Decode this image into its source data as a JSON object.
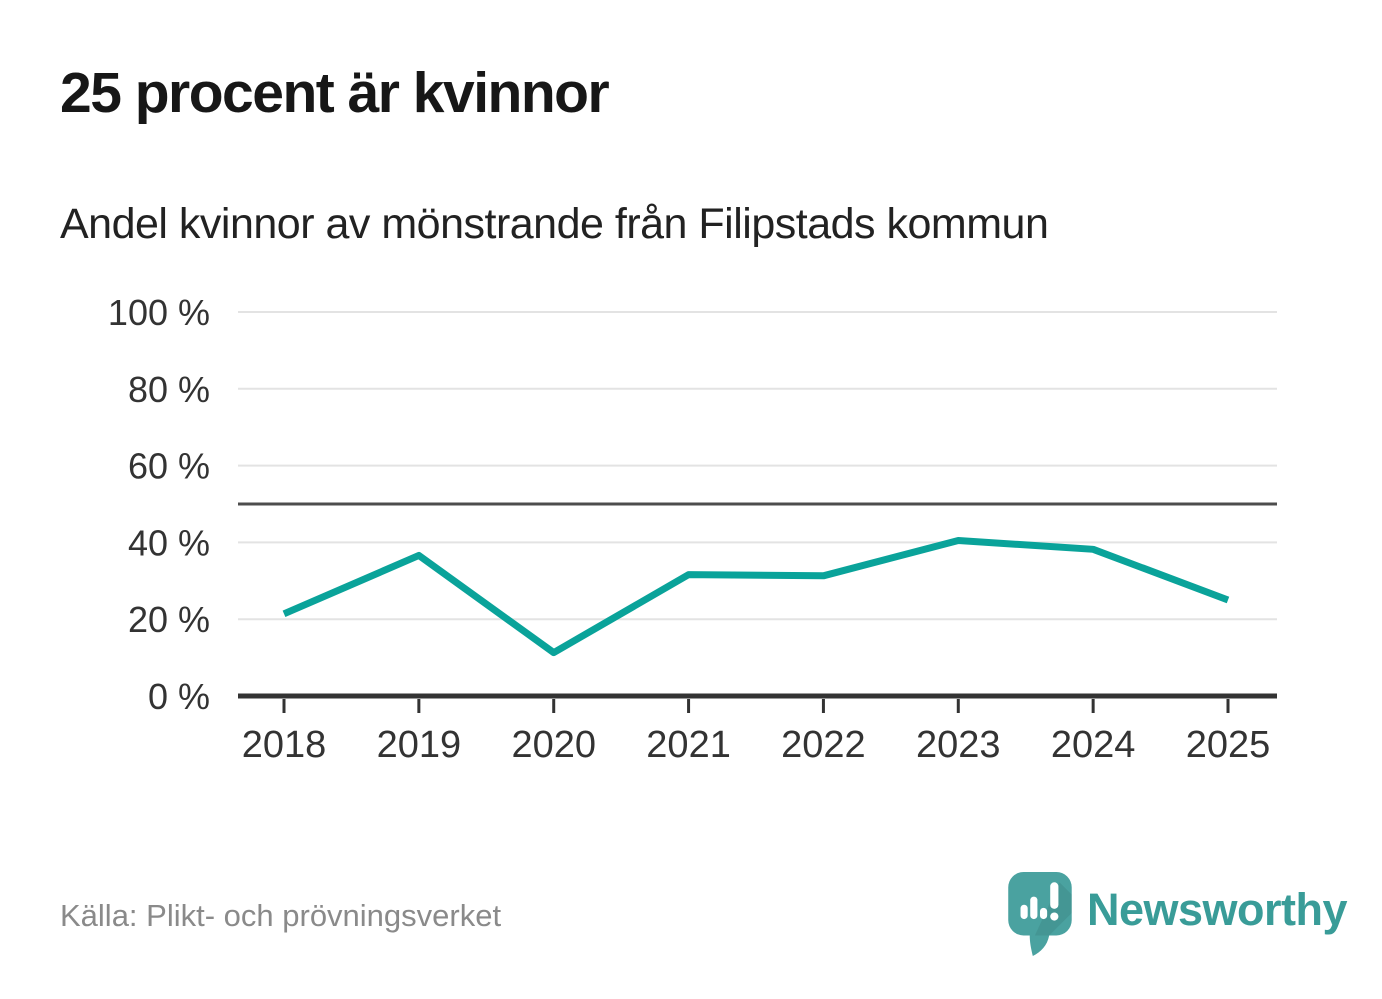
{
  "header": {
    "title": "25 procent är kvinnor",
    "subtitle": "Andel kvinnor av mönstrande från Filipstads kommun"
  },
  "footer": {
    "source": "Källa: Plikt- och prövningsverket",
    "logo_text": "Newsworthy"
  },
  "colors": {
    "line": "#0aa39a",
    "grid": "#e3e3e3",
    "reference": "#4d4d4d",
    "axis": "#333333",
    "tick_label": "#333333",
    "title": "#171717",
    "subtitle": "#222222",
    "source_text": "#8a8a8a",
    "logo_bubble": "#4aa2a0",
    "logo_text": "#399c98",
    "background": "#ffffff"
  },
  "chart_data": {
    "type": "line",
    "title": "25 procent är kvinnor",
    "subtitle": "Andel kvinnor av mönstrande från Filipstads kommun",
    "categories": [
      "2018",
      "2019",
      "2020",
      "2021",
      "2022",
      "2023",
      "2024",
      "2025"
    ],
    "series": [
      {
        "name": "Andel kvinnor av mönstrande",
        "values": [
          21.4,
          36.6,
          11.3,
          31.6,
          31.3,
          40.5,
          38.2,
          25
        ]
      }
    ],
    "unit": "%",
    "ylim": [
      0,
      100
    ],
    "yticks": [
      0,
      20,
      40,
      60,
      80,
      100
    ],
    "ytick_suffix": " %",
    "reference_line": 50,
    "grid": true,
    "legend": "none",
    "line_color": "#0aa39a"
  }
}
